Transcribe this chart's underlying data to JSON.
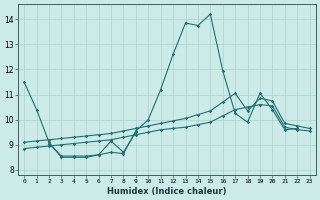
{
  "xlabel": "Humidex (Indice chaleur)",
  "xlim": [
    -0.5,
    23.5
  ],
  "ylim": [
    7.8,
    14.6
  ],
  "yticks": [
    8,
    9,
    10,
    11,
    12,
    13,
    14
  ],
  "xtick_vals": [
    0,
    1,
    2,
    3,
    4,
    5,
    6,
    7,
    8,
    9,
    10,
    11,
    12,
    13,
    14,
    15,
    16,
    17,
    18,
    19,
    20,
    21,
    22,
    23
  ],
  "xtick_labels": [
    "0",
    "1",
    "2",
    "3",
    "4",
    "5",
    "6",
    "7",
    "8",
    "9",
    "10",
    "11",
    "12",
    "13",
    "14",
    "15",
    "16",
    "17",
    "18",
    "19",
    "20",
    "21",
    "22",
    "23"
  ],
  "bg_color": "#cceae7",
  "grid_color": "#aad4d0",
  "line_color": "#1e7070",
  "series": [
    {
      "x": [
        0,
        1,
        2,
        3,
        4,
        5,
        6,
        7,
        8,
        9,
        10,
        11,
        12,
        13,
        14,
        15,
        16,
        17,
        18,
        19,
        20,
        21,
        22
      ],
      "y": [
        11.5,
        10.4,
        9.1,
        8.5,
        8.5,
        8.5,
        8.6,
        8.7,
        8.65,
        9.55,
        10.0,
        11.2,
        12.6,
        13.85,
        13.75,
        14.2,
        11.95,
        10.25,
        9.9,
        11.05,
        10.4,
        9.6,
        9.65
      ]
    },
    {
      "x": [
        2,
        3,
        4,
        5,
        6,
        7,
        8,
        9
      ],
      "y": [
        9.05,
        8.55,
        8.55,
        8.55,
        8.6,
        9.15,
        8.7,
        9.5
      ]
    },
    {
      "x": [
        0,
        1,
        2,
        3,
        4,
        5,
        6,
        7,
        8,
        9,
        10,
        11,
        12,
        13,
        14,
        15,
        16,
        17,
        18,
        19,
        20,
        21,
        22,
        23
      ],
      "y": [
        8.85,
        8.9,
        8.95,
        9.0,
        9.05,
        9.1,
        9.15,
        9.2,
        9.3,
        9.4,
        9.5,
        9.6,
        9.65,
        9.7,
        9.8,
        9.9,
        10.15,
        10.4,
        10.5,
        10.6,
        10.55,
        9.7,
        9.6,
        9.55
      ]
    },
    {
      "x": [
        0,
        1,
        2,
        3,
        4,
        5,
        6,
        7,
        8,
        9,
        10,
        11,
        12,
        13,
        14,
        15,
        16,
        17,
        18,
        19,
        20,
        21,
        22,
        23
      ],
      "y": [
        9.1,
        9.15,
        9.2,
        9.25,
        9.3,
        9.35,
        9.4,
        9.45,
        9.55,
        9.65,
        9.75,
        9.85,
        9.95,
        10.05,
        10.2,
        10.35,
        10.7,
        11.05,
        10.35,
        10.85,
        10.75,
        9.85,
        9.75,
        9.65
      ]
    }
  ]
}
